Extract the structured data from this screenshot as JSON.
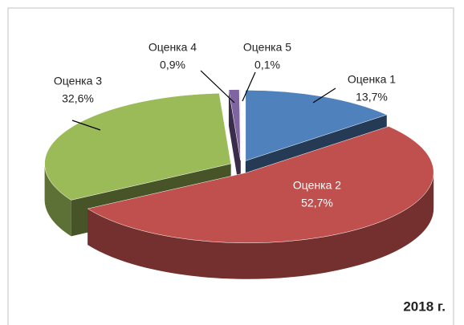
{
  "chart_data": {
    "type": "pie",
    "categories": [
      "Оценка 1",
      "Оценка 2",
      "Оценка 3",
      "Оценка 4",
      "Оценка 5"
    ],
    "values": [
      13.7,
      52.7,
      32.6,
      0.9,
      0.1
    ],
    "value_labels": [
      "13,7%",
      "52,7%",
      "32,6%",
      "0,9%",
      "0,1%"
    ],
    "colors": [
      "#4f81bd",
      "#c0504d",
      "#9bbb59",
      "#8064a2",
      "#dce6f2"
    ],
    "annotation": "2018 г."
  }
}
